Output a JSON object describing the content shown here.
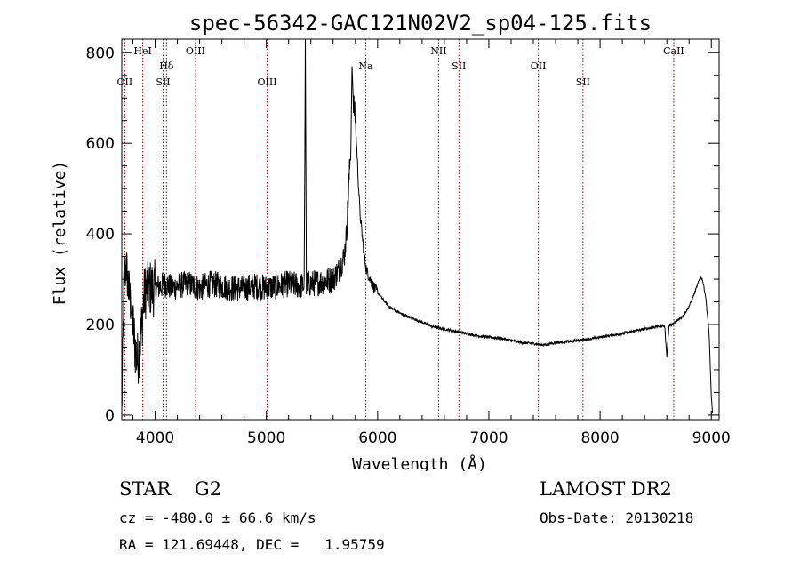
{
  "chart_data": {
    "type": "line",
    "title": "spec-56342-GAC121N02V2_sp04-125.fits",
    "xlabel": "Wavelength (Å)",
    "ylabel": "Flux (relative)",
    "xlim": [
      3700,
      9070
    ],
    "ylim": [
      -10,
      830
    ],
    "x_ticks": [
      4000,
      5000,
      6000,
      7000,
      8000,
      9000
    ],
    "y_ticks": [
      0,
      200,
      400,
      600,
      800
    ],
    "grid": false,
    "line_color": "#000000",
    "marker_color": "#8b0000",
    "lines": [
      {
        "label": "OII",
        "wavelength": 3727,
        "label_row": 2
      },
      {
        "label": "HeI",
        "wavelength": 3889,
        "label_row": 0
      },
      {
        "label": "Hδ",
        "wavelength": 4102,
        "label_row": 1
      },
      {
        "label": "SII",
        "wavelength": 4072,
        "label_row": 2
      },
      {
        "label": "OIII",
        "wavelength": 4363,
        "label_row": 0
      },
      {
        "label": "OIII",
        "wavelength": 5007,
        "label_row": 2
      },
      {
        "label": "Na",
        "wavelength": 5893,
        "label_row": 1
      },
      {
        "label": "NII",
        "wavelength": 6548,
        "label_row": 0
      },
      {
        "label": "SII",
        "wavelength": 6731,
        "label_row": 1
      },
      {
        "label": "OII",
        "wavelength": 7445,
        "label_row": 1
      },
      {
        "label": "SII",
        "wavelength": 7846,
        "label_row": 2
      },
      {
        "label": "CaII",
        "wavelength": 8662,
        "label_row": 0
      }
    ],
    "spectrum": {
      "x": [
        3700,
        3720,
        3740,
        3760,
        3780,
        3800,
        3820,
        3840,
        3860,
        3880,
        3900,
        3920,
        3950,
        4000,
        4050,
        4100,
        4150,
        4200,
        4300,
        4400,
        4500,
        4600,
        4700,
        4800,
        4900,
        5000,
        5100,
        5200,
        5300,
        5340,
        5350,
        5360,
        5400,
        5500,
        5600,
        5650,
        5700,
        5720,
        5740,
        5760,
        5770,
        5780,
        5800,
        5820,
        5840,
        5860,
        5880,
        5900,
        5950,
        6000,
        6100,
        6200,
        6300,
        6400,
        6500,
        6600,
        6700,
        6800,
        6900,
        7000,
        7100,
        7200,
        7300,
        7400,
        7500,
        7600,
        7700,
        7800,
        7900,
        8000,
        8100,
        8200,
        8300,
        8400,
        8500,
        8580,
        8600,
        8620,
        8650,
        8700,
        8750,
        8800,
        8850,
        8880,
        8900,
        8920,
        8950,
        8980,
        9000,
        9010
      ],
      "y": [
        5,
        300,
        330,
        280,
        250,
        200,
        150,
        120,
        150,
        200,
        260,
        280,
        280,
        280,
        285,
        290,
        280,
        285,
        290,
        280,
        290,
        285,
        280,
        280,
        285,
        280,
        285,
        290,
        285,
        285,
        830,
        290,
        290,
        295,
        300,
        320,
        350,
        400,
        500,
        600,
        770,
        700,
        650,
        550,
        450,
        400,
        350,
        320,
        290,
        270,
        240,
        225,
        215,
        205,
        195,
        190,
        185,
        180,
        175,
        172,
        170,
        165,
        160,
        158,
        155,
        160,
        162,
        165,
        168,
        172,
        176,
        180,
        185,
        190,
        195,
        198,
        130,
        198,
        200,
        210,
        220,
        240,
        270,
        290,
        305,
        300,
        260,
        180,
        40,
        5
      ]
    }
  },
  "info": {
    "class_line": "STAR    G2",
    "survey": "LAMOST DR2",
    "cz_line": "cz = -480.0 ± 66.6 km/s",
    "obs_date_line": "Obs-Date: 20130218",
    "radec_line": "RA = 121.69448, DEC =   1.95759"
  }
}
